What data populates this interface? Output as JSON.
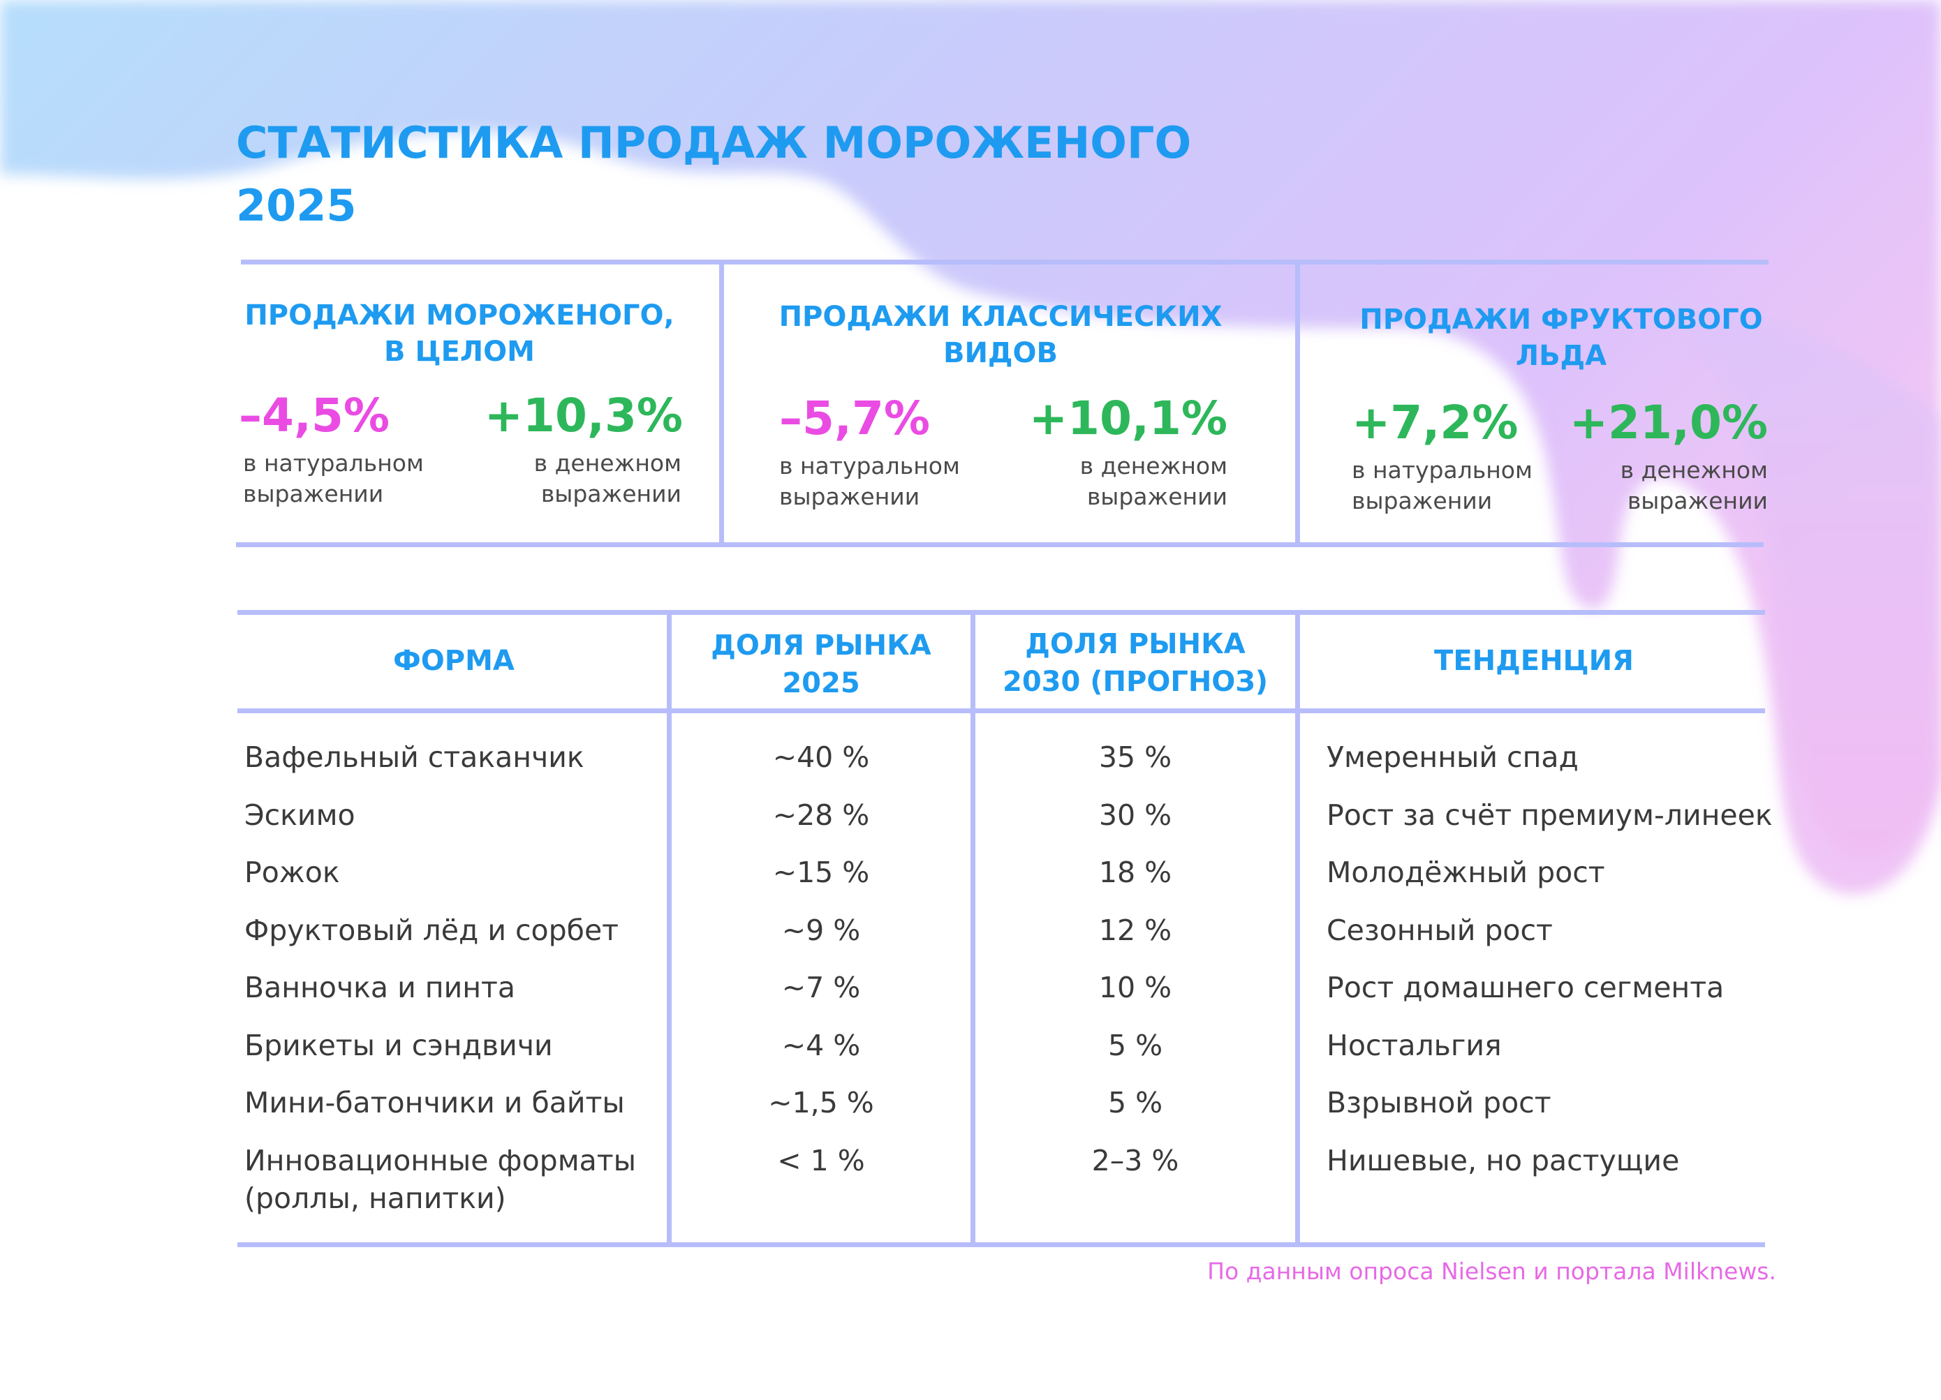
{
  "title": {
    "line1": "СТАТИСТИКА ПРОДАЖ МОРОЖЕНОГО",
    "line2": "2025"
  },
  "colors": {
    "title": "#1e9bf0",
    "negative": "#ea4ce3",
    "positive": "#2db75a",
    "rule": "#b7bdfa",
    "source": "#e66ae6"
  },
  "stats": [
    {
      "title": [
        "ПРОДАЖИ МОРОЖЕНОГО,",
        "В ЦЕЛОМ"
      ],
      "natural": {
        "value": "–4,5%",
        "caption": [
          "в натуральном",
          "выражении"
        ]
      },
      "money": {
        "value": "+10,3%",
        "caption": [
          "в денежном",
          "выражении"
        ]
      }
    },
    {
      "title": [
        "ПРОДАЖИ КЛАССИЧЕСКИХ",
        "ВИДОВ"
      ],
      "natural": {
        "value": "–5,7%",
        "caption": [
          "в натуральном",
          "выражении"
        ]
      },
      "money": {
        "value": "+10,1%",
        "caption": [
          "в денежном",
          "выражении"
        ]
      }
    },
    {
      "title": [
        "ПРОДАЖИ ФРУКТОВОГО",
        "ЛЬДА"
      ],
      "natural": {
        "value": "+7,2%",
        "caption": [
          "в натуральном",
          "выражении"
        ]
      },
      "money": {
        "value": "+21,0%",
        "caption": [
          "в денежном",
          "выражении"
        ]
      }
    }
  ],
  "table": {
    "headers": [
      [
        "ФОРМА"
      ],
      [
        "ДОЛЯ РЫНКА",
        "2025"
      ],
      [
        "ДОЛЯ РЫНКА",
        "2030 (ПРОГНОЗ)"
      ],
      [
        "ТЕНДЕНЦИЯ"
      ]
    ],
    "rows": [
      {
        "form": [
          "Вафельный стаканчик"
        ],
        "share2025": "~40 %",
        "share2030": "35 %",
        "trend": "Умеренный спад"
      },
      {
        "form": [
          "Эскимо"
        ],
        "share2025": "~28 %",
        "share2030": "30 %",
        "trend": "Рост за счёт премиум-линеек"
      },
      {
        "form": [
          "Рожок"
        ],
        "share2025": "~15 %",
        "share2030": "18 %",
        "trend": "Молодёжный рост"
      },
      {
        "form": [
          "Фруктовый лёд и сорбет"
        ],
        "share2025": "~9 %",
        "share2030": "12 %",
        "trend": "Сезонный рост"
      },
      {
        "form": [
          "Ванночка и пинта"
        ],
        "share2025": "~7 %",
        "share2030": "10 %",
        "trend": "Рост домашнего сегмента"
      },
      {
        "form": [
          "Брикеты и сэндвичи"
        ],
        "share2025": "~4 %",
        "share2030": "5 %",
        "trend": "Ностальгия"
      },
      {
        "form": [
          "Мини-батончики и байты"
        ],
        "share2025": "~1,5 %",
        "share2030": "5 %",
        "trend": "Взрывной рост"
      },
      {
        "form": [
          "Инновационные форматы",
          "(роллы, напитки)"
        ],
        "share2025": "< 1 %",
        "share2030": "2–3 %",
        "trend": "Нишевые, но растущие"
      }
    ]
  },
  "source": "По данным опроса Nielsen и портала Milknews."
}
